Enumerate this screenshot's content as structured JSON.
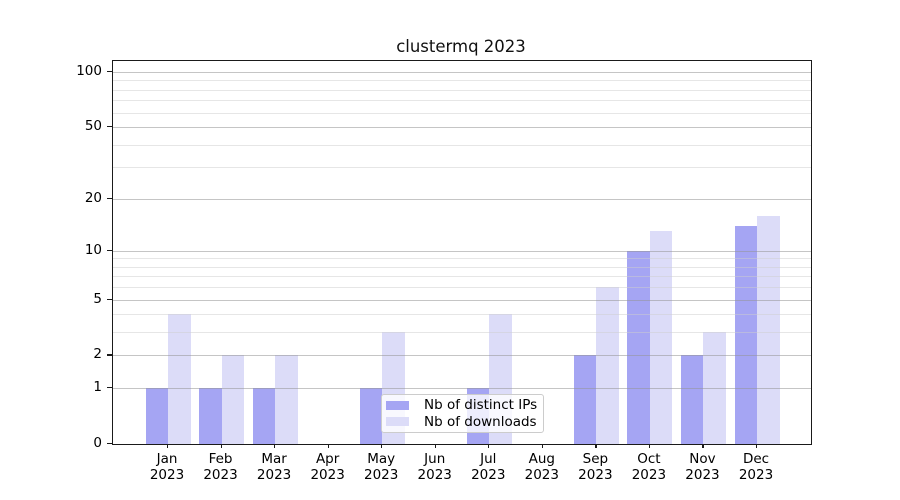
{
  "chart_data": {
    "type": "bar",
    "title": "clustermq 2023",
    "categories": [
      "Jan",
      "Feb",
      "Mar",
      "Apr",
      "May",
      "Jun",
      "Jul",
      "Aug",
      "Sep",
      "Oct",
      "Nov",
      "Dec"
    ],
    "x_tick_year": "2023",
    "series": [
      {
        "name": "Nb of distinct IPs",
        "color": "#a5a5f3",
        "values": [
          1,
          1,
          1,
          0,
          1,
          0,
          1,
          0,
          2,
          10,
          2,
          14
        ]
      },
      {
        "name": "Nb of downloads",
        "color": "#dcdcf8",
        "values": [
          4,
          2,
          2,
          0,
          3,
          0,
          4,
          0,
          6,
          13,
          3,
          16
        ]
      }
    ],
    "scale": "log1p",
    "ylim": [
      0,
      115
    ],
    "y_major_ticks": [
      0,
      1,
      2,
      5,
      10,
      20,
      50,
      100
    ],
    "y_minor_gridlines": [
      3,
      4,
      6,
      7,
      8,
      9,
      30,
      40,
      60,
      70,
      80,
      90
    ],
    "grid": true,
    "legend_position": "lower center",
    "axis_color": "#1a1a1a",
    "background_color": "#ffffff"
  }
}
